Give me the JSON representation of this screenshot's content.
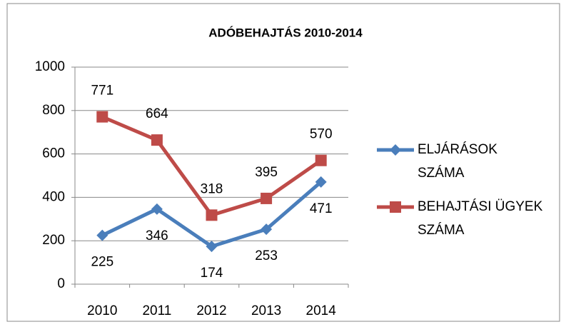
{
  "chart_data": {
    "type": "line",
    "title": "ADÓBEHAJTÁS 2010-2014",
    "categories": [
      "2010",
      "2011",
      "2012",
      "2013",
      "2014"
    ],
    "series": [
      {
        "name": "ELJÁRÁSOK SZÁMA",
        "color": "#4a7ebb",
        "marker": "diamond",
        "values": [
          225,
          346,
          174,
          253,
          471
        ]
      },
      {
        "name": "BEHAJTÁSI ÜGYEK SZÁMA",
        "color": "#be4b48",
        "marker": "square",
        "values": [
          771,
          664,
          318,
          395,
          570
        ]
      }
    ],
    "ylim": [
      0,
      1000
    ],
    "yticks": [
      0,
      200,
      400,
      600,
      800,
      1000
    ],
    "grid": true,
    "legend": "right"
  }
}
